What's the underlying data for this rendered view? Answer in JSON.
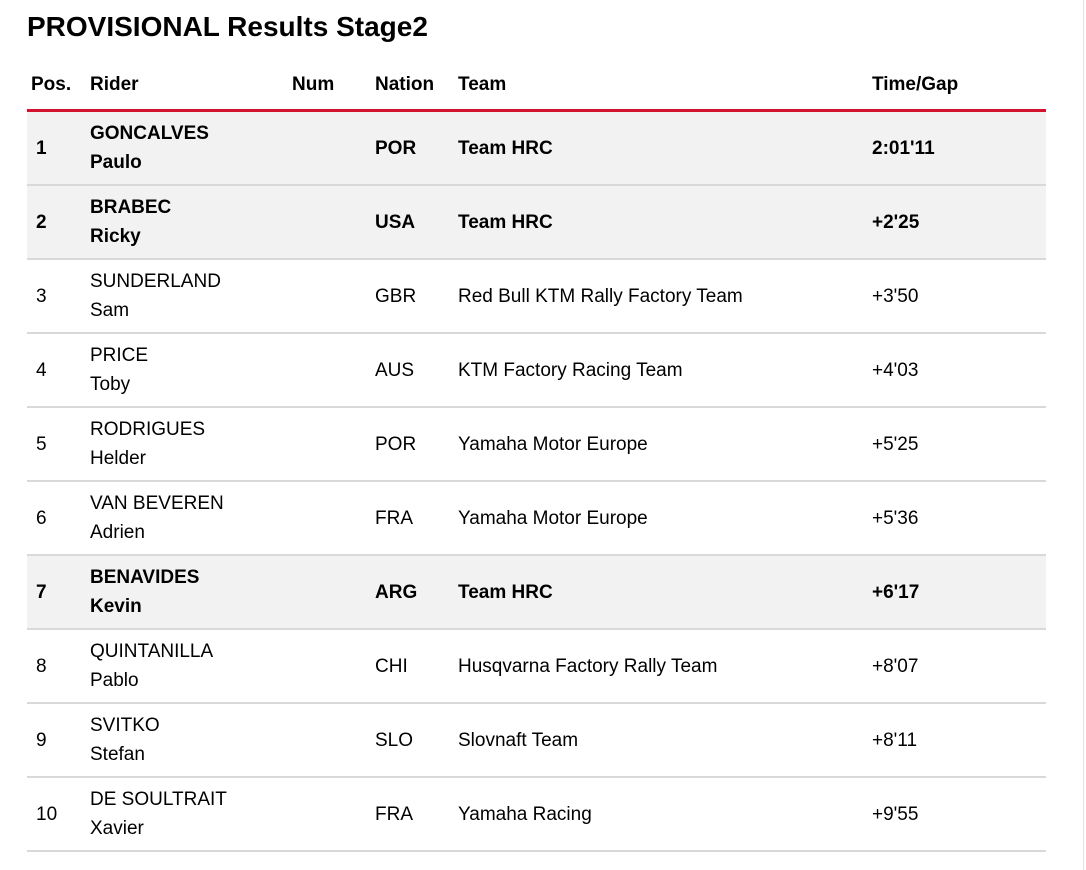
{
  "page": {
    "title": "PROVISIONAL Results Stage2"
  },
  "colors": {
    "accent_red": "#d2122e",
    "highlight_row_bg": "#f2f2f2",
    "row_border": "#d9d9d9",
    "text": "#000000"
  },
  "table": {
    "columns": [
      {
        "key": "pos",
        "label": "Pos."
      },
      {
        "key": "rider",
        "label": "Rider"
      },
      {
        "key": "num",
        "label": "Num"
      },
      {
        "key": "nation",
        "label": "Nation"
      },
      {
        "key": "team",
        "label": "Team"
      },
      {
        "key": "time",
        "label": "Time/Gap"
      }
    ],
    "rows": [
      {
        "pos": "1",
        "surname": "GONCALVES",
        "firstname": "Paulo",
        "num": "",
        "nation": "POR",
        "team": "Team HRC",
        "time": "2:01'11",
        "highlight": true
      },
      {
        "pos": "2",
        "surname": "BRABEC",
        "firstname": "Ricky",
        "num": "",
        "nation": "USA",
        "team": "Team HRC",
        "time": "+2'25",
        "highlight": true
      },
      {
        "pos": "3",
        "surname": "SUNDERLAND",
        "firstname": "Sam",
        "num": "",
        "nation": "GBR",
        "team": "Red Bull KTM Rally Factory Team",
        "time": "+3'50",
        "highlight": false
      },
      {
        "pos": "4",
        "surname": "PRICE",
        "firstname": "Toby",
        "num": "",
        "nation": "AUS",
        "team": "KTM Factory Racing Team",
        "time": "+4'03",
        "highlight": false
      },
      {
        "pos": "5",
        "surname": "RODRIGUES",
        "firstname": "Helder",
        "num": "",
        "nation": "POR",
        "team": "Yamaha Motor Europe",
        "time": "+5'25",
        "highlight": false
      },
      {
        "pos": "6",
        "surname": "VAN BEVEREN",
        "firstname": "Adrien",
        "num": "",
        "nation": "FRA",
        "team": "Yamaha Motor Europe",
        "time": "+5'36",
        "highlight": false
      },
      {
        "pos": "7",
        "surname": "BENAVIDES",
        "firstname": "Kevin",
        "num": "",
        "nation": "ARG",
        "team": "Team HRC",
        "time": "+6'17",
        "highlight": true
      },
      {
        "pos": "8",
        "surname": "QUINTANILLA",
        "firstname": "Pablo",
        "num": "",
        "nation": "CHI",
        "team": "Husqvarna Factory Rally Team",
        "time": "+8'07",
        "highlight": false
      },
      {
        "pos": "9",
        "surname": "SVITKO",
        "firstname": "Stefan",
        "num": "",
        "nation": "SLO",
        "team": "Slovnaft Team",
        "time": "+8'11",
        "highlight": false
      },
      {
        "pos": "10",
        "surname": "DE SOULTRAIT",
        "firstname": "Xavier",
        "num": "",
        "nation": "FRA",
        "team": "Yamaha Racing",
        "time": "+9'55",
        "highlight": false
      }
    ]
  }
}
